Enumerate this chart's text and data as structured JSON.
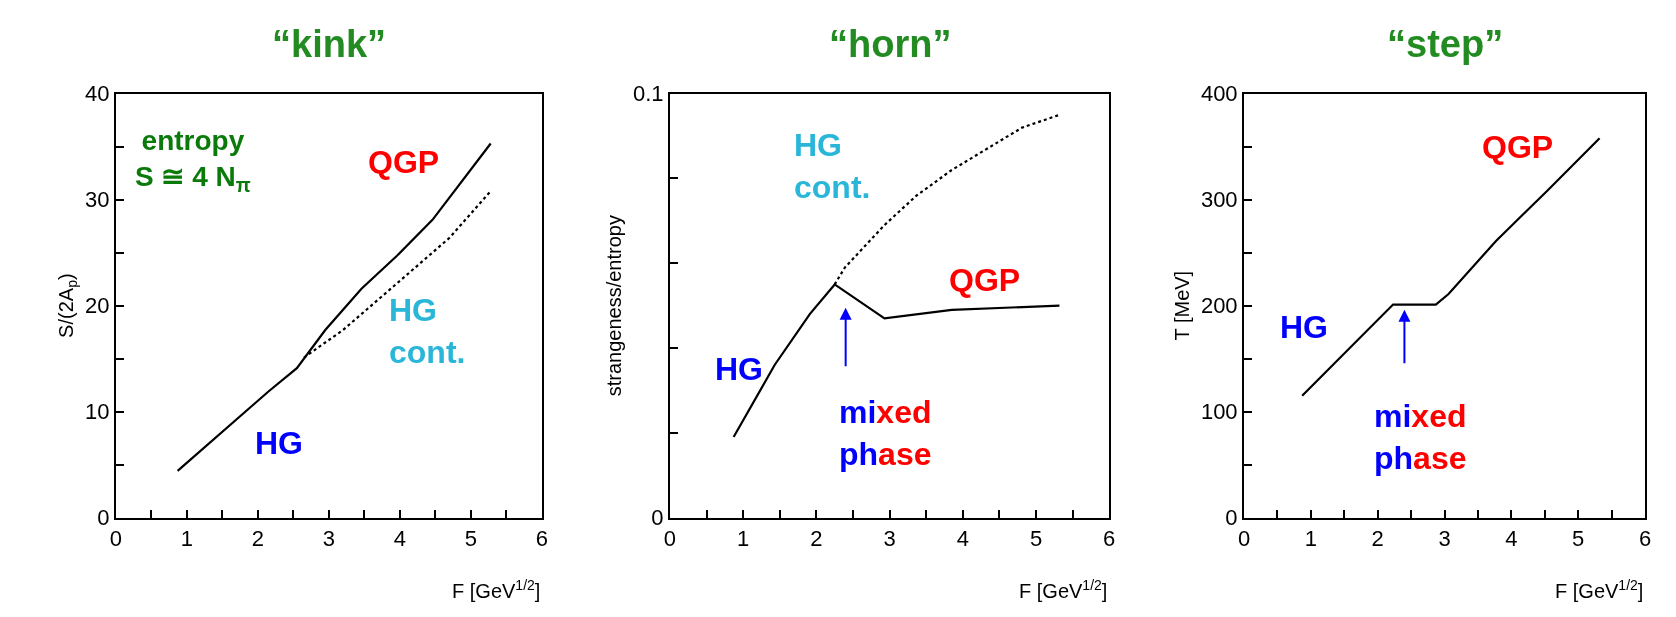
{
  "chart_data": [
    {
      "type": "line",
      "title": "“kink”",
      "xlabel": "F [GeV$^{1/2}$]",
      "ylabel": "S/(2A$_{p}$)",
      "xlim": [
        0,
        6
      ],
      "xticks": [
        0,
        {
          "value": 0.5,
          "label": null
        },
        1,
        {
          "value": 1.5,
          "label": null
        },
        2,
        {
          "value": 2.5,
          "label": null
        },
        3,
        {
          "value": 3.5,
          "label": null
        },
        4,
        {
          "value": 4.5,
          "label": null
        },
        5,
        {
          "value": 5.5,
          "label": null
        },
        6
      ],
      "ylim": [
        0,
        40
      ],
      "yticks": [
        0,
        {
          "value": 5,
          "label": null
        },
        10,
        {
          "value": 15,
          "label": null
        },
        20,
        {
          "value": 25,
          "label": null
        },
        30,
        {
          "value": 35,
          "label": null
        },
        40
      ],
      "series": [
        {
          "color": "#000000",
          "line_style": "solid",
          "x": [
            0.87,
            2.15,
            2.55,
            2.95,
            3.46,
            3.96,
            4.46,
            5.28
          ],
          "values": [
            4.4,
            11.9,
            14.1,
            17.7,
            21.6,
            24.7,
            28.1,
            35.3
          ]
        },
        {
          "color": "#000000",
          "line_style": "dotted",
          "x": [
            2.65,
            3.2,
            3.96,
            4.7,
            5.28
          ],
          "values": [
            15.1,
            17.7,
            22.1,
            26.4,
            30.8
          ]
        }
      ],
      "annotations": [
        "entropy\nS ≅ 4 N$_{π}$",
        "QGP",
        "HG\ncont.",
        "HG"
      ]
    },
    {
      "type": "line",
      "title": "“horn”",
      "xlabel": "F [GeV$^{1/2}$]",
      "ylabel": "strangeness/entropy",
      "xlim": [
        0,
        6
      ],
      "xticks": [
        0,
        {
          "value": 0.5,
          "label": null
        },
        1,
        {
          "value": 1.5,
          "label": null
        },
        2,
        {
          "value": 2.5,
          "label": null
        },
        3,
        {
          "value": 3.5,
          "label": null
        },
        4,
        {
          "value": 4.5,
          "label": null
        },
        5,
        {
          "value": 5.5,
          "label": null
        },
        6
      ],
      "ylim": [
        0,
        0.1
      ],
      "yticks": [
        0,
        {
          "value": 0.02,
          "label": null
        },
        {
          "value": 0.04,
          "label": null
        },
        {
          "value": 0.06,
          "label": null
        },
        {
          "value": 0.08,
          "label": null
        },
        0.1
      ],
      "series": [
        {
          "color": "#000000",
          "line_style": "solid",
          "x": [
            0.87,
            1.43,
            1.91,
            2.25,
            2.93,
            3.85,
            5.32
          ],
          "values": [
            0.019,
            0.036,
            0.048,
            0.055,
            0.047,
            0.049,
            0.05
          ]
        },
        {
          "color": "#000000",
          "line_style": "dotted",
          "x": [
            2.25,
            2.39,
            2.93,
            3.37,
            3.85,
            4.33,
            4.81,
            5.32
          ],
          "values": [
            0.055,
            0.059,
            0.069,
            0.076,
            0.082,
            0.087,
            0.092,
            0.095
          ]
        }
      ],
      "annotations": [
        "HG\ncont.",
        "QGP",
        "HG",
        "mixed\nphase"
      ]
    },
    {
      "type": "line",
      "title": "“step”",
      "xlabel": "F [GeV$^{1/2}$]",
      "ylabel": "T [MeV]",
      "xlim": [
        0,
        6
      ],
      "xticks": [
        0,
        {
          "value": 0.5,
          "label": null
        },
        1,
        {
          "value": 1.5,
          "label": null
        },
        2,
        {
          "value": 2.5,
          "label": null
        },
        3,
        {
          "value": 3.5,
          "label": null
        },
        4,
        {
          "value": 4.5,
          "label": null
        },
        5,
        {
          "value": 5.5,
          "label": null
        },
        6
      ],
      "ylim": [
        0,
        400
      ],
      "yticks": [
        0,
        {
          "value": 50,
          "label": null
        },
        100,
        {
          "value": 150,
          "label": null
        },
        200,
        {
          "value": 250,
          "label": null
        },
        300,
        {
          "value": 350,
          "label": null
        },
        400
      ],
      "series": [
        {
          "color": "#000000",
          "line_style": "solid",
          "x": [
            0.87,
            2.23,
            2.87,
            3.06,
            3.77,
            4.53,
            5.32
          ],
          "values": [
            115,
            201,
            201,
            211,
            261,
            308,
            358
          ]
        }
      ],
      "annotations": [
        "QGP",
        "HG",
        "mixed\nphase"
      ]
    }
  ]
}
